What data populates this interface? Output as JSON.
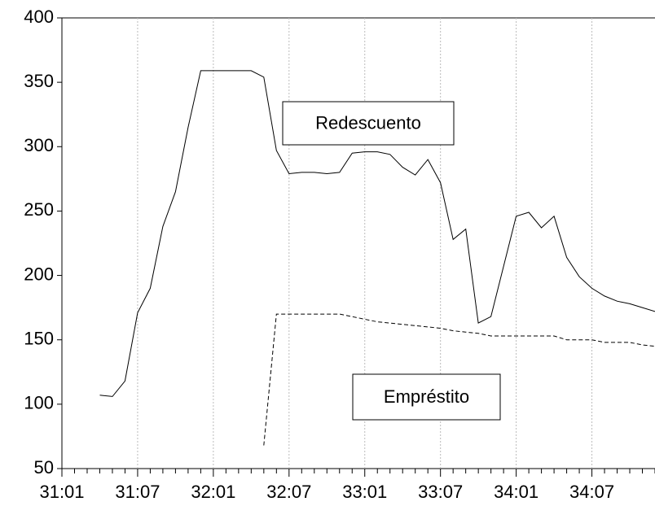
{
  "chart_data": {
    "type": "line",
    "categories": [
      "31:01",
      null,
      null,
      null,
      null,
      null,
      "31:07",
      null,
      null,
      null,
      null,
      null,
      "32:01",
      null,
      null,
      null,
      null,
      null,
      "32:07",
      null,
      null,
      null,
      null,
      null,
      "33:01",
      null,
      null,
      null,
      null,
      null,
      "33:07",
      null,
      null,
      null,
      null,
      null,
      "34:01",
      null,
      null,
      null,
      null,
      null,
      "34:07",
      null,
      null,
      null,
      null,
      null
    ],
    "series": [
      {
        "name": "Redescuento",
        "color": "#000000",
        "style": "solid",
        "values": [
          null,
          null,
          null,
          107,
          106,
          118,
          171,
          190,
          238,
          265,
          315,
          359,
          359,
          359,
          359,
          359,
          354,
          297,
          279,
          280,
          280,
          279,
          280,
          295,
          296,
          296,
          294,
          284,
          278,
          290,
          272,
          228,
          236,
          163,
          168,
          207,
          246,
          249,
          237,
          246,
          214,
          199,
          190,
          184,
          180,
          178,
          175,
          172
        ]
      },
      {
        "name": "Empréstito",
        "color": "#000000",
        "style": "dashed",
        "values": [
          null,
          null,
          null,
          null,
          null,
          null,
          null,
          null,
          null,
          null,
          null,
          null,
          null,
          null,
          null,
          null,
          68,
          170,
          170,
          170,
          170,
          170,
          170,
          168,
          166,
          164,
          163,
          162,
          161,
          160,
          159,
          157,
          156,
          155,
          153,
          153,
          153,
          153,
          153,
          153,
          150,
          150,
          150,
          148,
          148,
          148,
          146,
          145
        ]
      }
    ],
    "ylim": [
      50,
      400
    ],
    "yticks": [
      50,
      100,
      150,
      200,
      250,
      300,
      350,
      400
    ],
    "grid": true
  }
}
